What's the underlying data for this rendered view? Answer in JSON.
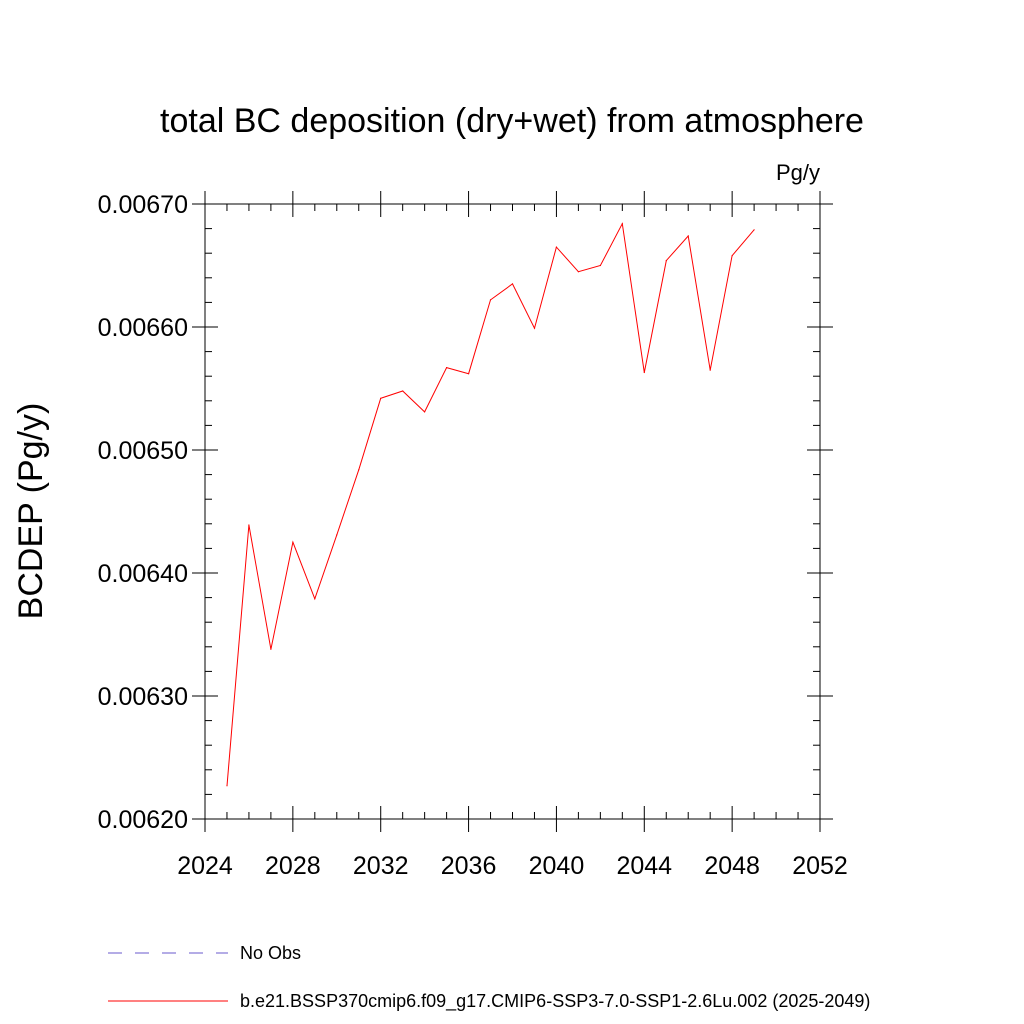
{
  "chart_data": {
    "type": "line",
    "title": "total BC deposition (dry+wet) from atmosphere",
    "units_label": "Pg/y",
    "ylabel": "BCDEP  (Pg/y)",
    "xlabel": "",
    "xlim": [
      2024,
      2052
    ],
    "ylim": [
      0.0062,
      0.0067
    ],
    "x_ticks": [
      2024,
      2028,
      2032,
      2036,
      2040,
      2044,
      2048,
      2052
    ],
    "x_tick_labels": [
      "2024",
      "2028",
      "2032",
      "2036",
      "2040",
      "2044",
      "2048",
      "2052"
    ],
    "y_ticks": [
      0.0062,
      0.0063,
      0.0064,
      0.0065,
      0.0066,
      0.0067
    ],
    "y_tick_labels": [
      "0.00620",
      "0.00630",
      "0.00640",
      "0.00650",
      "0.00660",
      "0.00670"
    ],
    "grid": false,
    "legend_position": "bottom",
    "legend": [
      {
        "label": "No Obs",
        "color": "#6a5acd",
        "style": "dashed"
      },
      {
        "label": "b.e21.BSSP370cmip6.f09_g17.CMIP6-SSP3-7.0-SSP1-2.6Lu.002 (2025-2049)",
        "color": "#ff0000",
        "style": "solid"
      }
    ],
    "series": [
      {
        "name": "b.e21.BSSP370cmip6.f09_g17.CMIP6-SSP3-7.0-SSP1-2.6Lu.002 (2025-2049)",
        "color": "#ff0000",
        "x": [
          2025,
          2026,
          2027,
          2028,
          2029,
          2030,
          2031,
          2032,
          2033,
          2034,
          2035,
          2036,
          2037,
          2038,
          2039,
          2040,
          2041,
          2042,
          2043,
          2044,
          2045,
          2046,
          2047,
          2048,
          2049
        ],
        "y": [
          0.006227,
          0.006439,
          0.006338,
          0.006425,
          0.006379,
          0.006431,
          0.006484,
          0.006542,
          0.006548,
          0.006531,
          0.006567,
          0.006562,
          0.006622,
          0.006635,
          0.006599,
          0.006665,
          0.006645,
          0.00665,
          0.006684,
          0.006563,
          0.006654,
          0.006674,
          0.006565,
          0.006658,
          0.006679
        ]
      }
    ]
  }
}
